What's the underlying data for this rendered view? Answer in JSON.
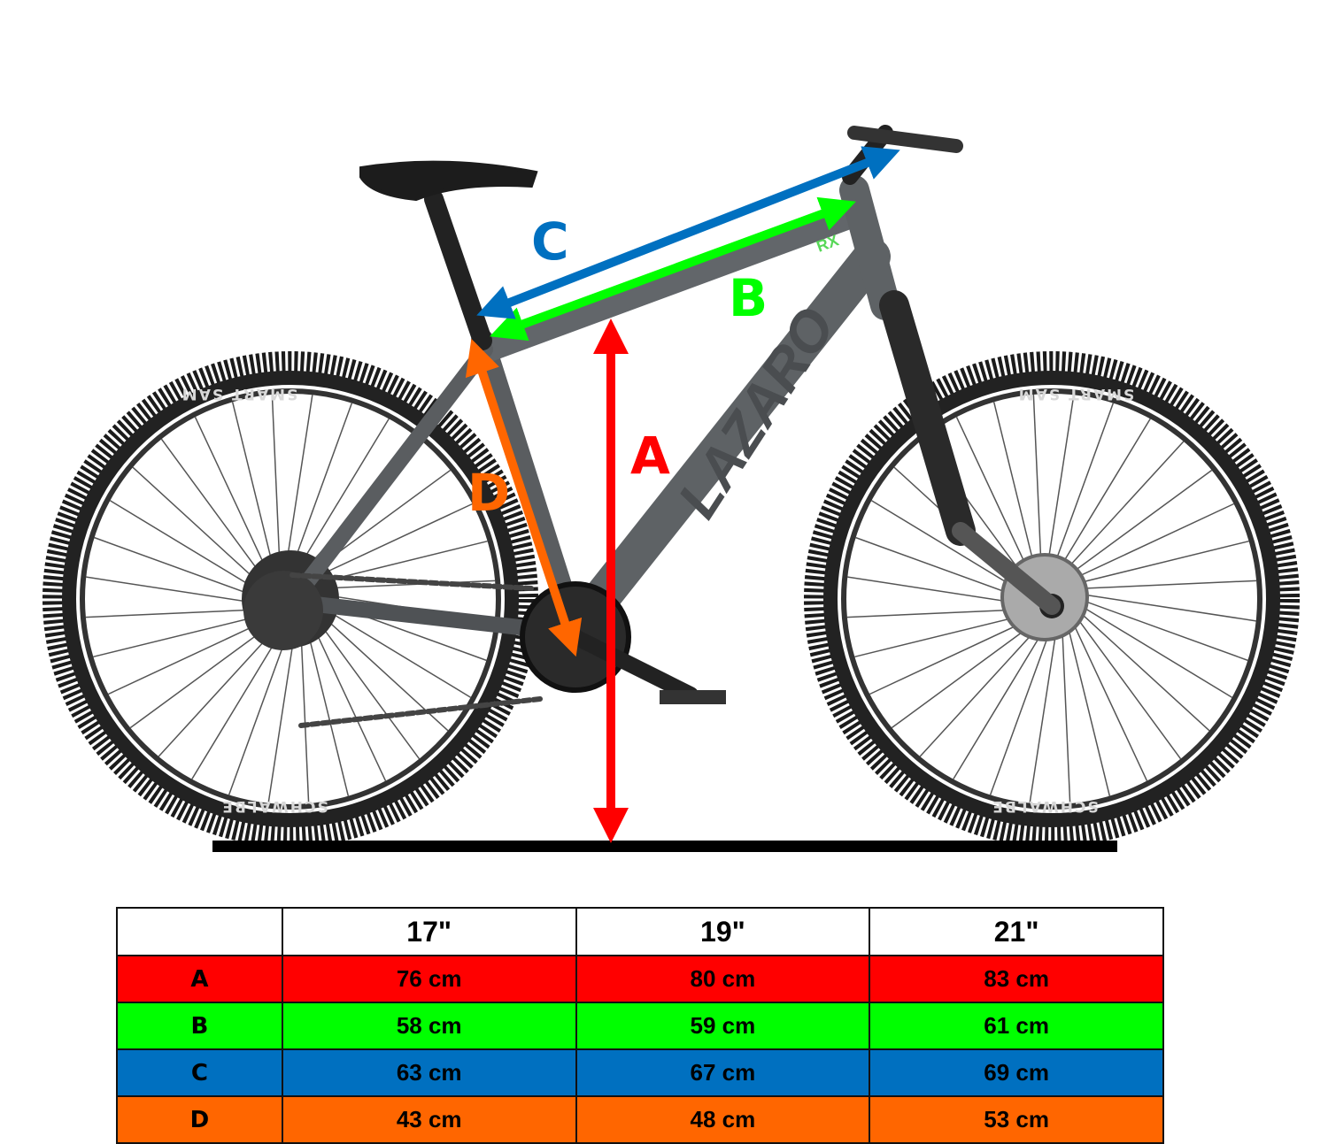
{
  "brand_logo": "LAZARO",
  "model_logo": "RX",
  "tire_logos": [
    "SMART SAM",
    "SCHWALBE"
  ],
  "measurements": [
    {
      "key": "A",
      "color": "#ff0000"
    },
    {
      "key": "B",
      "color": "#00ff00"
    },
    {
      "key": "C",
      "color": "#0070c0"
    },
    {
      "key": "D",
      "color": "#ff6600"
    }
  ],
  "table": {
    "headers": [
      "",
      "17\"",
      "19\"",
      "21\""
    ],
    "rows": [
      {
        "label": "A",
        "color": "#ff0000",
        "values": [
          "76 cm",
          "80 cm",
          "83 cm"
        ]
      },
      {
        "label": "B",
        "color": "#00ff00",
        "values": [
          "58 cm",
          "59 cm",
          "61 cm"
        ]
      },
      {
        "label": "C",
        "color": "#0070c0",
        "values": [
          "63 cm",
          "67 cm",
          "69 cm"
        ]
      },
      {
        "label": "D",
        "color": "#ff6600",
        "values": [
          "43 cm",
          "48 cm",
          "53 cm"
        ]
      }
    ]
  }
}
